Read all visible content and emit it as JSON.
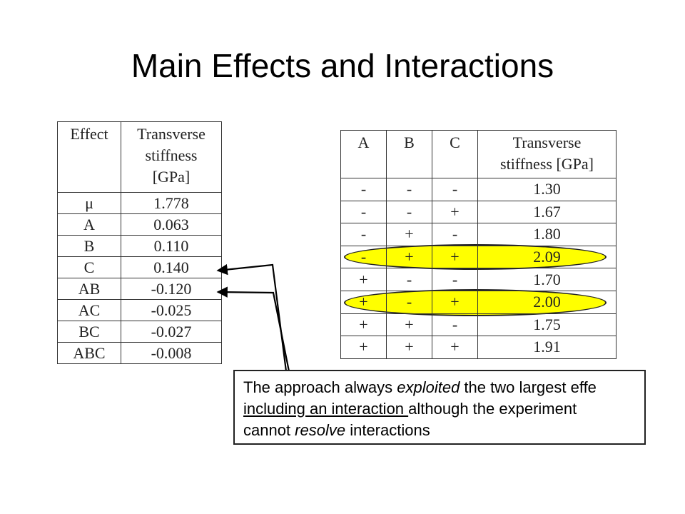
{
  "title": "Main Effects and Interactions",
  "effects_table": {
    "headers": [
      "Effect",
      "Transverse\nstiffness\n[GPa]"
    ],
    "rows": [
      [
        "μ",
        "1.778"
      ],
      [
        "A",
        "0.063"
      ],
      [
        "B",
        "0.110"
      ],
      [
        "C",
        "0.140"
      ],
      [
        "AB",
        "-0.120"
      ],
      [
        "AC",
        "-0.025"
      ],
      [
        "BC",
        "-0.027"
      ],
      [
        "ABC",
        "-0.008"
      ]
    ]
  },
  "design_table": {
    "headers": [
      "A",
      "B",
      "C",
      "Transverse\nstiffness [GPa]"
    ],
    "rows": [
      [
        "-",
        "-",
        "-",
        "1.30"
      ],
      [
        "-",
        "-",
        "+",
        "1.67"
      ],
      [
        "-",
        "+",
        "-",
        "1.80"
      ],
      [
        "-",
        "+",
        "+",
        "2.09"
      ],
      [
        "+",
        "-",
        "-",
        "1.70"
      ],
      [
        "+",
        "-",
        "+",
        "2.00"
      ],
      [
        "+",
        "+",
        "-",
        "1.75"
      ],
      [
        "+",
        "+",
        "+",
        "1.91"
      ]
    ],
    "highlighted_rows": [
      4,
      6
    ],
    "highlight_color": "#ffff00"
  },
  "note": {
    "line1_a": "The approach always ",
    "line1_em": "exploited",
    "line1_b": " the two largest effe",
    "line2_u": "including an interaction ",
    "line2_b": "although the experiment",
    "line3_a": "cannot ",
    "line3_em": "resolve",
    "line3_b": " interactions"
  }
}
